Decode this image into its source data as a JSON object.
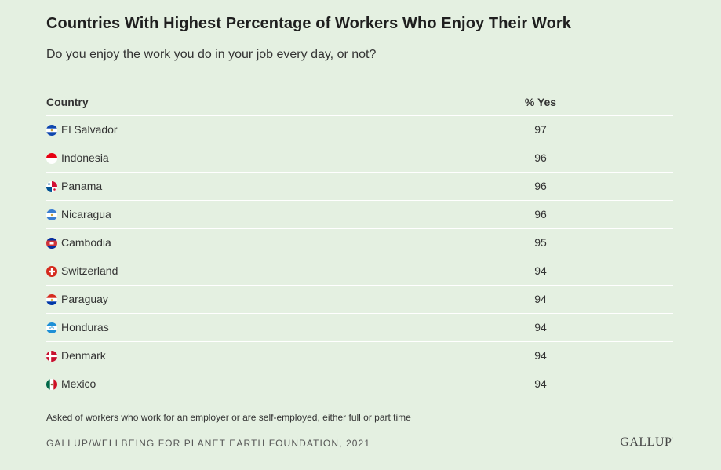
{
  "chart_data": {
    "type": "table",
    "title": "Countries With Highest Percentage of Workers Who Enjoy Their Work",
    "subtitle": "Do you enjoy the work you do in your job every day, or not?",
    "columns": [
      "Country",
      "% Yes"
    ],
    "rows": [
      {
        "country": "El Salvador",
        "value": 97,
        "flag_icon": "el-salvador-flag-icon"
      },
      {
        "country": "Indonesia",
        "value": 96,
        "flag_icon": "indonesia-flag-icon"
      },
      {
        "country": "Panama",
        "value": 96,
        "flag_icon": "panama-flag-icon"
      },
      {
        "country": "Nicaragua",
        "value": 96,
        "flag_icon": "nicaragua-flag-icon"
      },
      {
        "country": "Cambodia",
        "value": 95,
        "flag_icon": "cambodia-flag-icon"
      },
      {
        "country": "Switzerland",
        "value": 94,
        "flag_icon": "switzerland-flag-icon"
      },
      {
        "country": "Paraguay",
        "value": 94,
        "flag_icon": "paraguay-flag-icon"
      },
      {
        "country": "Honduras",
        "value": 94,
        "flag_icon": "honduras-flag-icon"
      },
      {
        "country": "Denmark",
        "value": 94,
        "flag_icon": "denmark-flag-icon"
      },
      {
        "country": "Mexico",
        "value": 94,
        "flag_icon": "mexico-flag-icon"
      }
    ],
    "note": "Asked of workers who work for an employer or are self-employed, either full or part time",
    "source": "GALLUP/WELLBEING FOR PLANET EARTH FOUNDATION, 2021"
  },
  "logo": {
    "text": "GALLUP",
    "mark": "'"
  },
  "colors": {
    "background": "#e4f0e1",
    "rule": "#ffffff",
    "text": "#333333"
  }
}
